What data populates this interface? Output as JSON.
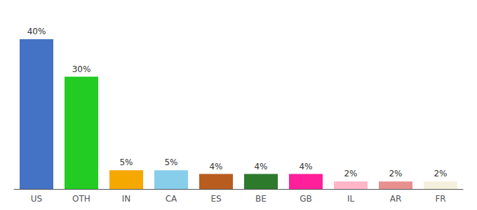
{
  "chart_data": {
    "type": "bar",
    "categories": [
      "US",
      "OTH",
      "IN",
      "CA",
      "ES",
      "BE",
      "GB",
      "IL",
      "AR",
      "FR"
    ],
    "values": [
      40,
      30,
      5,
      5,
      4,
      4,
      4,
      2,
      2,
      2
    ],
    "value_labels": [
      "40%",
      "30%",
      "5%",
      "5%",
      "4%",
      "4%",
      "4%",
      "2%",
      "2%",
      "2%"
    ],
    "data_labels": true,
    "colors": [
      "#4472C4",
      "#22CC22",
      "#F5A800",
      "#87CEEB",
      "#B85C20",
      "#2D7A2D",
      "#FF1F9A",
      "#FFB6C8",
      "#E89090",
      "#F5F0DC"
    ],
    "ylim": [
      0,
      46
    ],
    "grid": false,
    "tick_labels": "x"
  }
}
